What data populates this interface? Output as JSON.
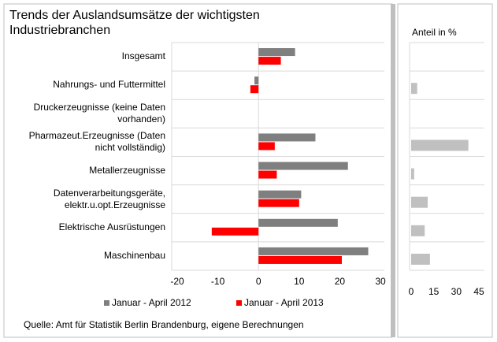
{
  "chart_data": [
    {
      "type": "hbar",
      "title": "Trends der Auslandsumsätze  der wichtigsten\nIndustriebranchen",
      "categories": [
        "Insgesamt",
        "Nahrungs- und Futtermittel",
        "Druckerzeugnisse (keine Daten\nvorhanden)",
        "Pharmazeut.Erzeugnisse (Daten\nnicht vollständig)",
        "Metallerzeugnisse",
        "Datenverarbeitungsgeräte,\nelektr.u.opt.Erzeugnisse",
        "Elektrische Ausrüstungen",
        "Maschinenbau"
      ],
      "series": [
        {
          "name": "Januar - April 2012",
          "color": "#7f7f7f",
          "values": [
            9,
            -1,
            null,
            14,
            22,
            10.5,
            19.5,
            27
          ]
        },
        {
          "name": "Januar - April 2013",
          "color": "#ff0000",
          "values": [
            5.5,
            -2,
            null,
            4,
            4.5,
            10,
            -11.5,
            20.5
          ]
        }
      ],
      "xlim": [
        -20,
        30
      ],
      "xticks": [
        -20,
        -10,
        0,
        10,
        20,
        30
      ],
      "source": "Quelle: Amt für Statistik Berlin Brandenburg, eigene Berechnungen"
    },
    {
      "type": "hbar",
      "title": "Anteil in %",
      "categories": [
        null,
        null,
        null,
        null,
        null,
        null,
        null,
        null
      ],
      "series": [
        {
          "color": "#c0c0c0",
          "values": [
            null,
            4,
            null,
            38,
            2,
            11,
            9,
            12.5
          ]
        }
      ],
      "xlim": [
        0,
        45
      ],
      "xticks": [
        0,
        15,
        30,
        45
      ]
    }
  ]
}
